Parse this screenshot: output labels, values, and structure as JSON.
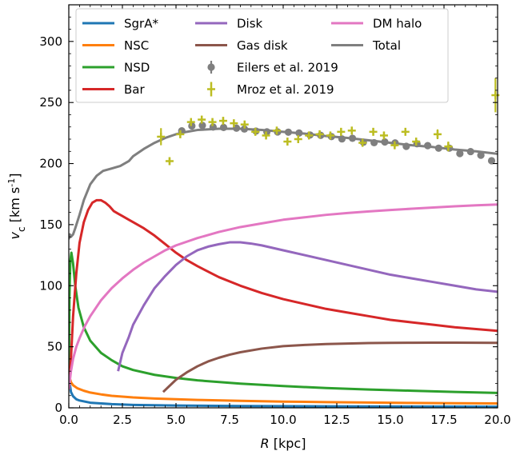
{
  "chart_data": {
    "type": "line",
    "xlabel": "R [kpc]",
    "ylabel": "v_c [km s^-1]",
    "xlim": [
      0,
      20
    ],
    "ylim": [
      0,
      330
    ],
    "xticks": [
      0.0,
      2.5,
      5.0,
      7.5,
      10.0,
      12.5,
      15.0,
      17.5,
      20.0
    ],
    "xtick_labels": [
      "0.0",
      "2.5",
      "5.0",
      "7.5",
      "10.0",
      "12.5",
      "15.0",
      "17.5",
      "20.0"
    ],
    "yticks": [
      0,
      50,
      100,
      150,
      200,
      250,
      300
    ],
    "ytick_labels": [
      "0",
      "50",
      "100",
      "150",
      "200",
      "250",
      "300"
    ],
    "grid": false,
    "legend_position": "top",
    "series": [
      {
        "name": "SgrA*",
        "color": "#1f77b4",
        "style": "line",
        "x": [
          0.02,
          0.05,
          0.1,
          0.2,
          0.35,
          0.5,
          1,
          2,
          3,
          5,
          8,
          12,
          16,
          20
        ],
        "y": [
          30,
          19,
          13,
          9.5,
          7,
          6,
          4.2,
          3,
          2.4,
          1.9,
          1.5,
          1.2,
          1.05,
          0.9
        ]
      },
      {
        "name": "NSC",
        "color": "#ff7f0e",
        "style": "line",
        "x": [
          0.02,
          0.05,
          0.1,
          0.2,
          0.4,
          0.7,
          1,
          1.5,
          2,
          3,
          4,
          5,
          6,
          8,
          10,
          12,
          14,
          16,
          18,
          20
        ],
        "y": [
          28,
          24,
          21,
          18.5,
          16,
          14,
          12.5,
          11,
          9.8,
          8.5,
          7.6,
          7,
          6.5,
          5.7,
          5.1,
          4.7,
          4.3,
          4.0,
          3.8,
          3.6
        ]
      },
      {
        "name": "NSD",
        "color": "#2ca02c",
        "style": "line",
        "x": [
          0.0,
          0.03,
          0.07,
          0.12,
          0.2,
          0.3,
          0.45,
          0.7,
          1,
          1.5,
          2,
          2.5,
          3,
          4,
          5,
          6,
          8,
          10,
          12,
          14,
          16,
          18,
          20
        ],
        "y": [
          18,
          90,
          120,
          127,
          118,
          100,
          82,
          66,
          55,
          45,
          39,
          34,
          31,
          27,
          24.5,
          22.5,
          19.8,
          17.8,
          16.2,
          15,
          14,
          13,
          12.2
        ]
      },
      {
        "name": "Bar",
        "color": "#d62728",
        "style": "line",
        "x": [
          0.0,
          0.1,
          0.2,
          0.35,
          0.5,
          0.7,
          0.9,
          1.1,
          1.3,
          1.5,
          1.7,
          1.9,
          2.1,
          2.3,
          2.5,
          2.8,
          3,
          3.5,
          4,
          4.5,
          5,
          5.5,
          6,
          7,
          8,
          9,
          10,
          11,
          12,
          13,
          14,
          15,
          16,
          17,
          18,
          19,
          20
        ],
        "y": [
          15,
          40,
          75,
          110,
          135,
          152,
          162,
          168,
          170,
          170,
          168,
          165,
          161,
          159,
          157,
          154,
          152,
          147,
          141,
          134,
          127,
          121,
          116,
          107,
          100,
          94,
          89,
          85,
          81,
          78,
          75,
          72,
          70,
          68,
          66,
          64.5,
          63
        ]
      },
      {
        "name": "Disk",
        "color": "#9467bd",
        "style": "line",
        "x": [
          2.3,
          2.5,
          2.8,
          3.0,
          3.5,
          4.0,
          4.5,
          5.0,
          5.5,
          6.0,
          6.5,
          7.0,
          7.5,
          8.0,
          8.5,
          9,
          10,
          11,
          12,
          13,
          14,
          15,
          16,
          17,
          18,
          19,
          20
        ],
        "y": [
          30,
          45,
          58,
          68,
          84,
          98,
          108,
          117,
          124,
          129,
          132,
          134,
          135.5,
          135.5,
          134.5,
          133,
          129,
          125,
          121,
          117,
          113,
          109,
          106,
          103,
          100,
          97,
          95
        ]
      },
      {
        "name": "Gas disk",
        "color": "#8c564b",
        "style": "line",
        "x": [
          4.4,
          4.7,
          5.0,
          5.5,
          6.0,
          6.5,
          7,
          7.5,
          8,
          9,
          10,
          11,
          12,
          13,
          14,
          15,
          16,
          17,
          18,
          19,
          20
        ],
        "y": [
          13,
          18,
          23,
          29,
          34,
          38,
          41,
          43.5,
          45.5,
          48.5,
          50.5,
          51.5,
          52.2,
          52.6,
          53,
          53.2,
          53.3,
          53.4,
          53.4,
          53.3,
          53.2
        ]
      },
      {
        "name": "DM halo",
        "color": "#e377c2",
        "style": "line",
        "x": [
          0.0,
          0.1,
          0.2,
          0.35,
          0.5,
          0.75,
          1.0,
          1.5,
          2,
          2.5,
          3,
          3.5,
          4,
          4.5,
          5,
          6,
          7,
          8,
          9,
          10,
          11,
          12,
          13,
          14,
          15,
          16,
          17,
          18,
          19,
          20
        ],
        "y": [
          15,
          30,
          40,
          50,
          57,
          67,
          75,
          88,
          98,
          106,
          113,
          119,
          124,
          129,
          133,
          139,
          144,
          148,
          151,
          154,
          156,
          158,
          159.5,
          160.8,
          162,
          163,
          164,
          165,
          165.8,
          166.5
        ]
      },
      {
        "name": "Total",
        "color": "#7f7f7f",
        "style": "line",
        "x": [
          0.0,
          0.05,
          0.1,
          0.2,
          0.3,
          0.5,
          0.7,
          1,
          1.3,
          1.6,
          2,
          2.4,
          2.8,
          3,
          3.5,
          4,
          4.5,
          5,
          5.5,
          6,
          7,
          8,
          9,
          10,
          11,
          12,
          13,
          14,
          15,
          16,
          17,
          18,
          19,
          20
        ],
        "y": [
          138,
          142,
          140,
          142,
          147,
          158,
          170,
          183,
          190,
          194,
          196,
          198,
          202,
          206,
          212,
          217,
          221,
          224,
          226,
          227.5,
          228.5,
          228.5,
          227.5,
          226,
          224.5,
          222.5,
          221,
          219,
          217,
          215,
          213.5,
          211.5,
          210,
          208
        ]
      },
      {
        "name": "Eilers et al. 2019",
        "color": "#7f7f7f",
        "style": "errorbar_circle",
        "x": [
          5.27,
          5.74,
          6.23,
          6.73,
          7.22,
          7.82,
          8.19,
          8.73,
          9.24,
          9.74,
          10.24,
          10.74,
          11.25,
          11.75,
          12.25,
          12.74,
          13.23,
          13.74,
          14.24,
          14.74,
          15.22,
          15.74,
          16.24,
          16.74,
          17.25,
          17.75,
          18.24,
          18.74,
          19.22,
          19.72
        ],
        "y": [
          226.8,
          230.8,
          231.2,
          229.9,
          229.6,
          229.0,
          228.3,
          226.6,
          226.0,
          225.9,
          225.7,
          225.0,
          223.4,
          223.1,
          222.1,
          220.2,
          220.7,
          217.5,
          217.1,
          217.7,
          216.9,
          214.1,
          216.2,
          214.7,
          212.6,
          212.6,
          208.2,
          209.8,
          206.8,
          202.3
        ],
        "yerr": [
          1.5,
          1.5,
          1.5,
          1.5,
          1.5,
          1.5,
          1.5,
          1.5,
          1.5,
          1.5,
          1.5,
          1.5,
          1.5,
          1.5,
          1.5,
          1.5,
          1.5,
          1.5,
          1.5,
          1.5,
          1.5,
          1.5,
          1.5,
          2,
          2,
          2,
          2,
          2,
          2,
          2.5
        ]
      },
      {
        "name": "Mroz et al. 2019",
        "color": "#bcbd22",
        "style": "errorbar_plus",
        "x": [
          4.3,
          4.7,
          5.2,
          5.7,
          6.2,
          6.7,
          7.2,
          7.7,
          8.2,
          8.7,
          9.2,
          9.7,
          10.2,
          10.7,
          11.2,
          11.7,
          12.2,
          12.7,
          13.2,
          13.7,
          14.2,
          14.7,
          15.2,
          15.7,
          16.2,
          17.2,
          17.7,
          19.9
        ],
        "y": [
          222,
          202,
          224,
          234,
          236,
          234,
          235,
          233,
          232,
          226,
          223,
          227,
          218,
          220,
          223,
          224,
          223,
          226,
          227,
          217,
          226,
          223,
          215,
          226,
          218,
          224,
          214,
          256
        ],
        "yerr": [
          7,
          3,
          3,
          3,
          3,
          3,
          3,
          3,
          3,
          3,
          3,
          3,
          3,
          3,
          3,
          3,
          3,
          3,
          3,
          3,
          3,
          3,
          3,
          3,
          3,
          4,
          4,
          14
        ]
      }
    ]
  }
}
